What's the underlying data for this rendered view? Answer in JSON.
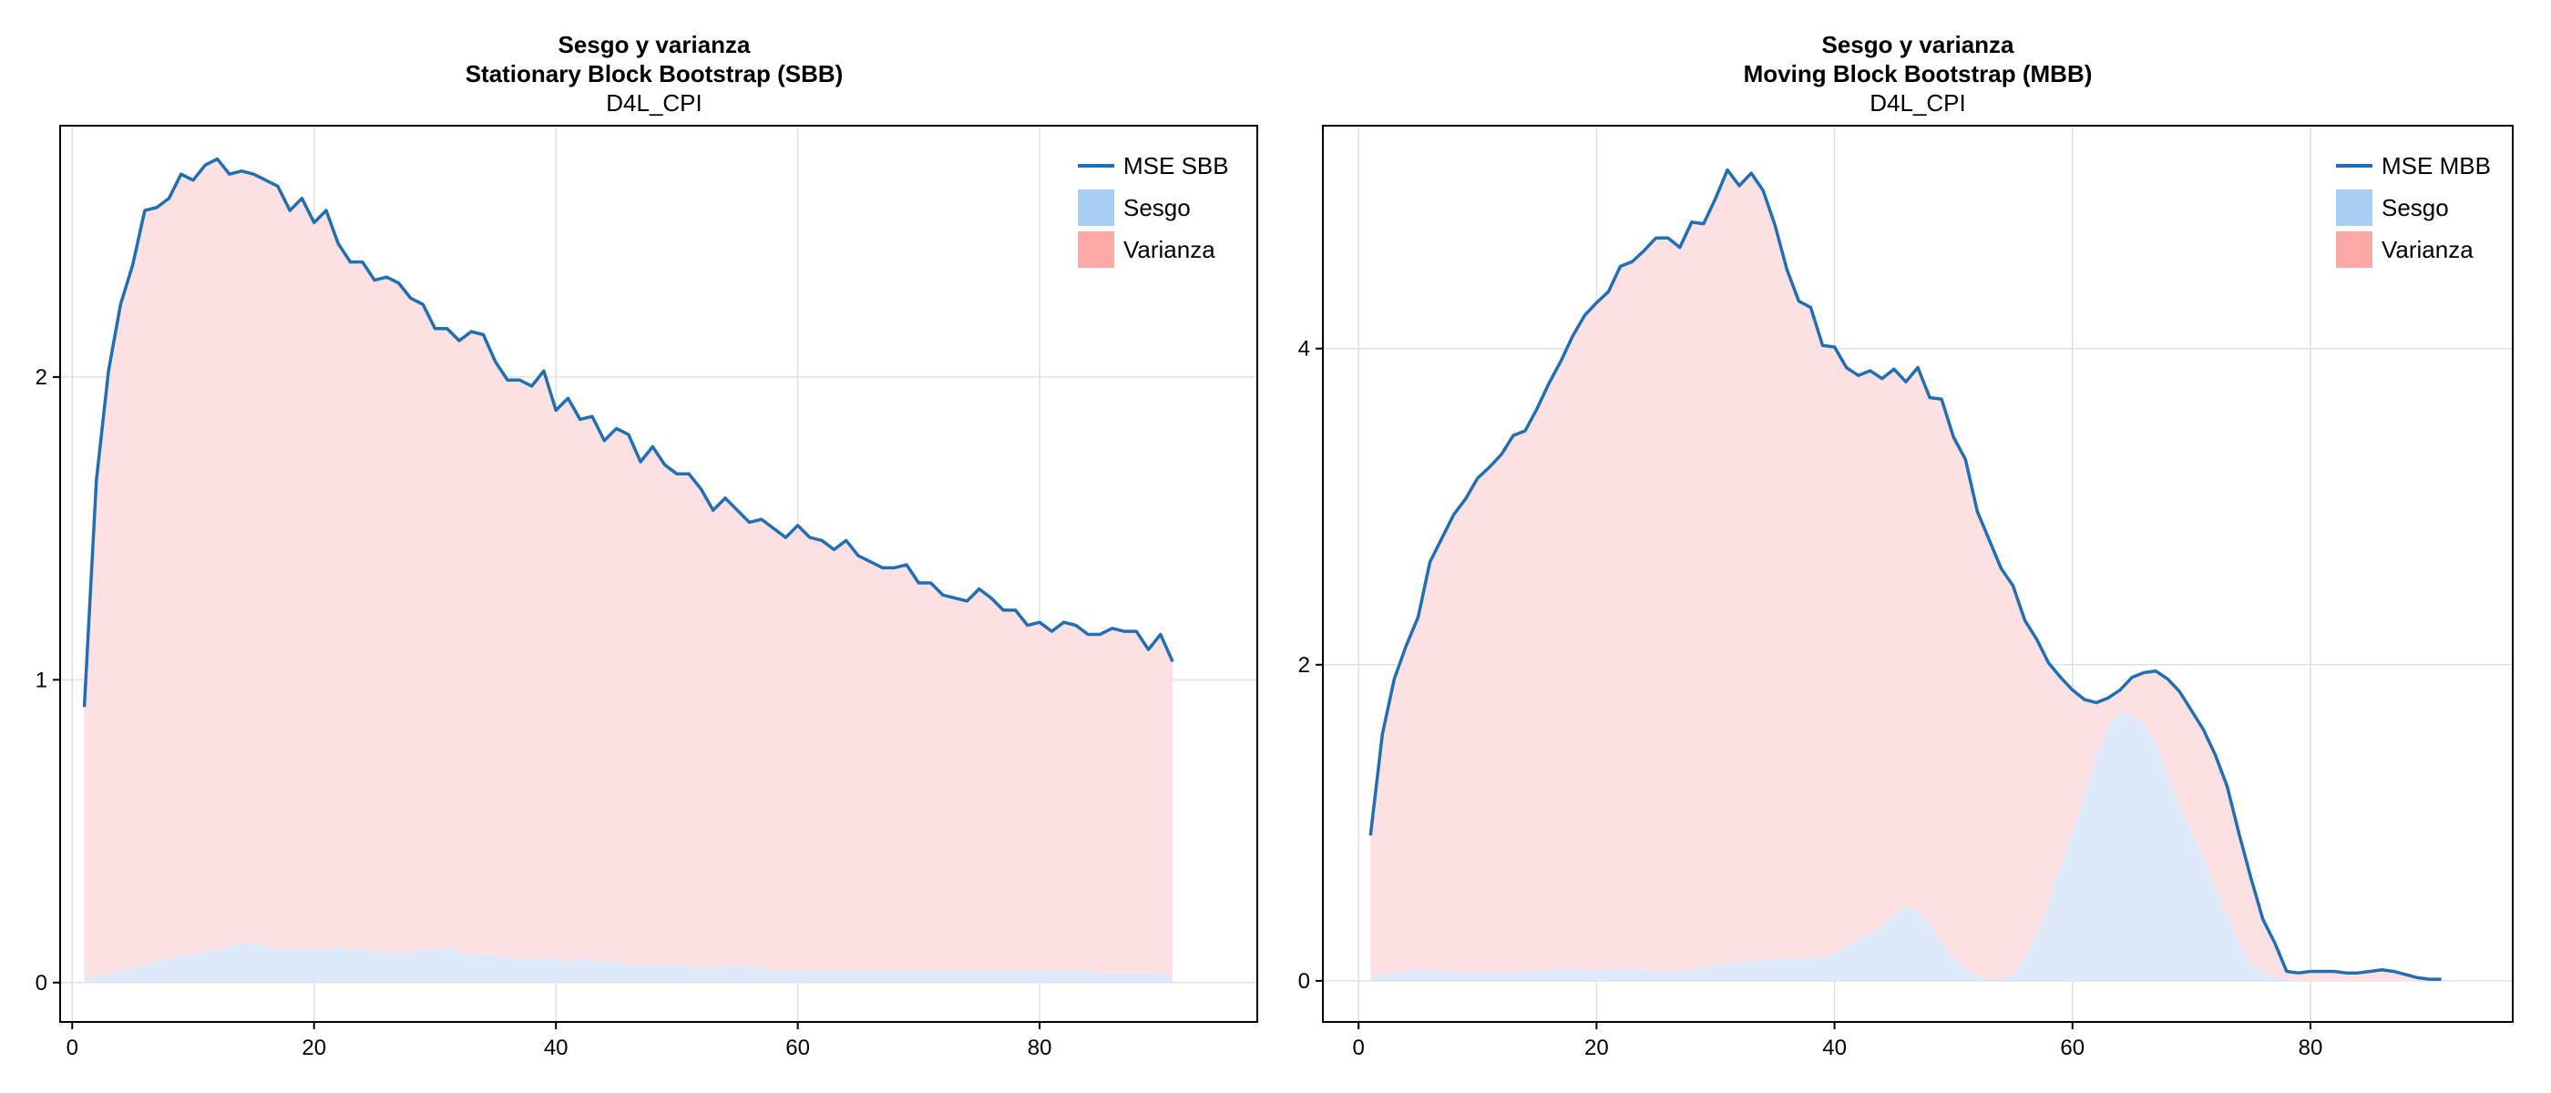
{
  "colors": {
    "mse_line": "#1f6fb2",
    "sesgo_fill": "#dde9f8",
    "varianza_fill": "#fde0e2",
    "sesgo_legend": "#a8cff3",
    "varianza_legend": "#fca9a7",
    "grid": "#e0e0e0",
    "axis": "#000000"
  },
  "chart_data": [
    {
      "type": "area",
      "title": "Sesgo y varianza",
      "subtitle": "Stationary Block Bootstrap (SBB)",
      "subtitle2": "D4L_CPI",
      "xlim": [
        -1,
        98
      ],
      "ylim": [
        -0.13,
        2.83
      ],
      "xticks": [
        0,
        20,
        40,
        60,
        80
      ],
      "yticks": [
        0,
        1,
        2
      ],
      "grid": true,
      "legend_position": "top-right",
      "legend": [
        "MSE SBB",
        "Sesgo",
        "Varianza"
      ],
      "x": [
        1,
        2,
        3,
        4,
        5,
        6,
        7,
        8,
        9,
        10,
        11,
        12,
        13,
        14,
        15,
        16,
        17,
        18,
        19,
        20,
        21,
        22,
        23,
        24,
        25,
        26,
        27,
        28,
        29,
        30,
        31,
        32,
        33,
        34,
        35,
        36,
        37,
        38,
        39,
        40,
        41,
        42,
        43,
        44,
        45,
        46,
        47,
        48,
        49,
        50,
        51,
        52,
        53,
        54,
        55,
        56,
        57,
        58,
        59,
        60,
        61,
        62,
        63,
        64,
        65,
        66,
        67,
        68,
        69,
        70,
        71,
        72,
        73,
        74,
        75,
        76,
        77,
        78,
        79,
        80,
        81,
        82,
        83,
        84,
        85,
        86,
        87,
        88,
        89,
        90,
        91
      ],
      "series": [
        {
          "name": "MSE SBB",
          "role": "line",
          "values": [
            0.91,
            1.66,
            2.02,
            2.24,
            2.37,
            2.55,
            2.56,
            2.59,
            2.67,
            2.65,
            2.7,
            2.72,
            2.67,
            2.68,
            2.67,
            2.65,
            2.63,
            2.55,
            2.59,
            2.51,
            2.55,
            2.44,
            2.38,
            2.38,
            2.32,
            2.33,
            2.31,
            2.26,
            2.24,
            2.16,
            2.16,
            2.12,
            2.15,
            2.14,
            2.05,
            1.99,
            1.99,
            1.97,
            2.02,
            1.89,
            1.93,
            1.86,
            1.87,
            1.79,
            1.83,
            1.81,
            1.72,
            1.77,
            1.71,
            1.68,
            1.68,
            1.63,
            1.56,
            1.6,
            1.56,
            1.52,
            1.53,
            1.5,
            1.47,
            1.51,
            1.47,
            1.46,
            1.43,
            1.46,
            1.41,
            1.39,
            1.37,
            1.37,
            1.38,
            1.32,
            1.32,
            1.28,
            1.27,
            1.26,
            1.3,
            1.27,
            1.23,
            1.23,
            1.18,
            1.19,
            1.16,
            1.19,
            1.18,
            1.15,
            1.15,
            1.17,
            1.16,
            1.16,
            1.1,
            1.15,
            1.06
          ]
        },
        {
          "name": "Sesgo",
          "role": "area",
          "values": [
            0.01,
            0.02,
            0.03,
            0.04,
            0.05,
            0.06,
            0.07,
            0.08,
            0.09,
            0.09,
            0.1,
            0.11,
            0.12,
            0.13,
            0.13,
            0.12,
            0.11,
            0.11,
            0.11,
            0.11,
            0.11,
            0.12,
            0.11,
            0.11,
            0.1,
            0.1,
            0.1,
            0.1,
            0.11,
            0.11,
            0.12,
            0.1,
            0.09,
            0.09,
            0.09,
            0.08,
            0.08,
            0.08,
            0.08,
            0.08,
            0.07,
            0.08,
            0.07,
            0.07,
            0.07,
            0.06,
            0.06,
            0.06,
            0.06,
            0.06,
            0.05,
            0.05,
            0.05,
            0.05,
            0.06,
            0.05,
            0.05,
            0.04,
            0.04,
            0.04,
            0.04,
            0.04,
            0.04,
            0.04,
            0.04,
            0.04,
            0.04,
            0.04,
            0.04,
            0.04,
            0.04,
            0.04,
            0.04,
            0.04,
            0.04,
            0.04,
            0.04,
            0.04,
            0.04,
            0.04,
            0.04,
            0.04,
            0.04,
            0.04,
            0.03,
            0.03,
            0.03,
            0.03,
            0.03,
            0.03,
            0.02
          ]
        }
      ]
    },
    {
      "type": "area",
      "title": "Sesgo y varianza",
      "subtitle": "Moving Block Bootstrap (MBB)",
      "subtitle2": "D4L_CPI",
      "xlim": [
        -3,
        97
      ],
      "ylim": [
        -0.26,
        5.41
      ],
      "xticks": [
        0,
        20,
        40,
        60,
        80
      ],
      "yticks": [
        0,
        2,
        4
      ],
      "grid": true,
      "legend_position": "top-right",
      "legend": [
        "MSE MBB",
        "Sesgo",
        "Varianza"
      ],
      "x": [
        1,
        2,
        3,
        4,
        5,
        6,
        7,
        8,
        9,
        10,
        11,
        12,
        13,
        14,
        15,
        16,
        17,
        18,
        19,
        20,
        21,
        22,
        23,
        24,
        25,
        26,
        27,
        28,
        29,
        30,
        31,
        32,
        33,
        34,
        35,
        36,
        37,
        38,
        39,
        40,
        41,
        42,
        43,
        44,
        45,
        46,
        47,
        48,
        49,
        50,
        51,
        52,
        53,
        54,
        55,
        56,
        57,
        58,
        59,
        60,
        61,
        62,
        63,
        64,
        65,
        66,
        67,
        68,
        69,
        70,
        71,
        72,
        73,
        74,
        75,
        76,
        77,
        78,
        79,
        80,
        81,
        82,
        83,
        84,
        85,
        86,
        87,
        88,
        89,
        90,
        91
      ],
      "series": [
        {
          "name": "MSE MBB",
          "role": "line",
          "values": [
            0.92,
            1.56,
            1.91,
            2.12,
            2.3,
            2.65,
            2.8,
            2.95,
            3.05,
            3.18,
            3.25,
            3.33,
            3.45,
            3.48,
            3.62,
            3.78,
            3.92,
            4.08,
            4.21,
            4.29,
            4.36,
            4.52,
            4.55,
            4.62,
            4.7,
            4.7,
            4.64,
            4.8,
            4.79,
            4.95,
            5.13,
            5.03,
            5.11,
            5.0,
            4.78,
            4.5,
            4.3,
            4.26,
            4.02,
            4.01,
            3.88,
            3.83,
            3.86,
            3.81,
            3.87,
            3.79,
            3.88,
            3.69,
            3.68,
            3.44,
            3.3,
            2.97,
            2.79,
            2.61,
            2.5,
            2.28,
            2.16,
            2.01,
            1.92,
            1.84,
            1.78,
            1.76,
            1.79,
            1.84,
            1.92,
            1.95,
            1.96,
            1.91,
            1.83,
            1.71,
            1.59,
            1.43,
            1.23,
            0.93,
            0.65,
            0.39,
            0.24,
            0.06,
            0.05,
            0.06,
            0.06,
            0.06,
            0.05,
            0.05,
            0.06,
            0.07,
            0.06,
            0.04,
            0.02,
            0.01,
            0.01
          ]
        },
        {
          "name": "Sesgo",
          "role": "area",
          "values": [
            0.02,
            0.04,
            0.05,
            0.06,
            0.07,
            0.07,
            0.06,
            0.06,
            0.05,
            0.05,
            0.05,
            0.05,
            0.06,
            0.06,
            0.07,
            0.07,
            0.08,
            0.08,
            0.07,
            0.07,
            0.08,
            0.08,
            0.07,
            0.07,
            0.06,
            0.06,
            0.06,
            0.07,
            0.08,
            0.1,
            0.12,
            0.12,
            0.13,
            0.13,
            0.14,
            0.14,
            0.14,
            0.14,
            0.15,
            0.18,
            0.22,
            0.26,
            0.3,
            0.35,
            0.42,
            0.47,
            0.44,
            0.35,
            0.25,
            0.15,
            0.08,
            0.03,
            0.01,
            0.01,
            0.04,
            0.15,
            0.3,
            0.5,
            0.72,
            0.95,
            1.18,
            1.42,
            1.62,
            1.7,
            1.68,
            1.63,
            1.5,
            1.3,
            1.12,
            0.95,
            0.78,
            0.6,
            0.42,
            0.25,
            0.12,
            0.05,
            0.02,
            0.01,
            0.0,
            0.0,
            0.0,
            0.0,
            0.0,
            0.0,
            0.0,
            0.0,
            0.0,
            0.0,
            0.0,
            0.0,
            0.0
          ]
        }
      ]
    }
  ]
}
